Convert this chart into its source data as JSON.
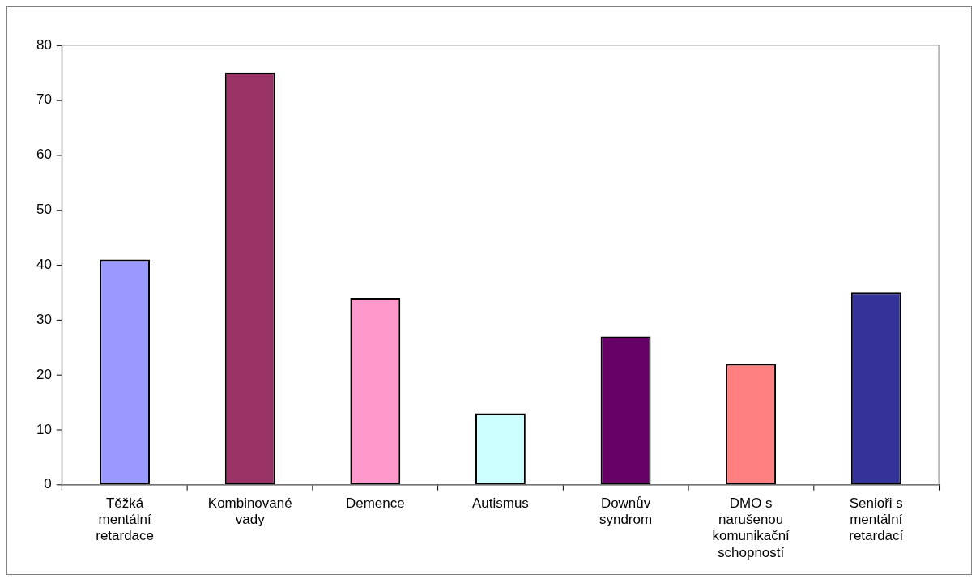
{
  "chart_data": {
    "type": "bar",
    "categories": [
      "Těžká mentální retardace",
      "Kombinované vady",
      "Demence",
      "Autismus",
      "Downův syndrom",
      "DMO s narušenou komunikační schopností",
      "Senioři s mentální retardací"
    ],
    "values": [
      41,
      75,
      34,
      13,
      27,
      22,
      35
    ],
    "colors": [
      "#9999ff",
      "#993366",
      "#ff99cc",
      "#ccffff",
      "#660066",
      "#ff8080",
      "#333399"
    ],
    "ylim": [
      0,
      80
    ],
    "yticks": [
      0,
      10,
      20,
      30,
      40,
      50,
      60,
      70,
      80
    ],
    "grid": false,
    "legend": false
  }
}
